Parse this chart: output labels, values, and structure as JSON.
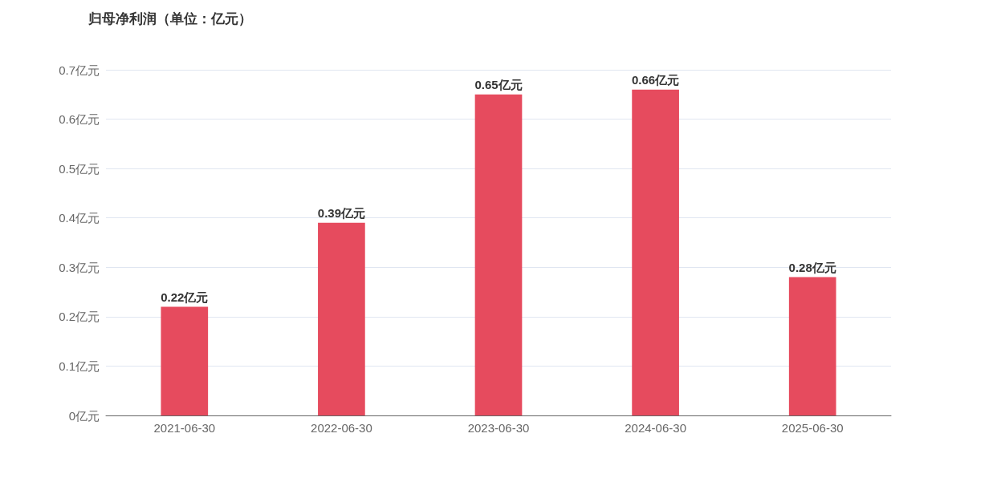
{
  "chart_data": {
    "type": "bar",
    "title": "归母净利润（单位：亿元）",
    "categories": [
      "2021-06-30",
      "2022-06-30",
      "2023-06-30",
      "2024-06-30",
      "2025-06-30"
    ],
    "values": [
      0.22,
      0.39,
      0.65,
      0.66,
      0.28
    ],
    "value_labels": [
      "0.22亿元",
      "0.39亿元",
      "0.65亿元",
      "0.66亿元",
      "0.28亿元"
    ],
    "color": "#e64b5e",
    "ylim": [
      0,
      0.7
    ],
    "yticks": [
      {
        "value": 0,
        "label": "0亿元"
      },
      {
        "value": 0.1,
        "label": "0.1亿元"
      },
      {
        "value": 0.2,
        "label": "0.2亿元"
      },
      {
        "value": 0.3,
        "label": "0.3亿元"
      },
      {
        "value": 0.4,
        "label": "0.4亿元"
      },
      {
        "value": 0.5,
        "label": "0.5亿元"
      },
      {
        "value": 0.6,
        "label": "0.6亿元"
      },
      {
        "value": 0.7,
        "label": "0.7亿元"
      }
    ],
    "grid": "y"
  }
}
